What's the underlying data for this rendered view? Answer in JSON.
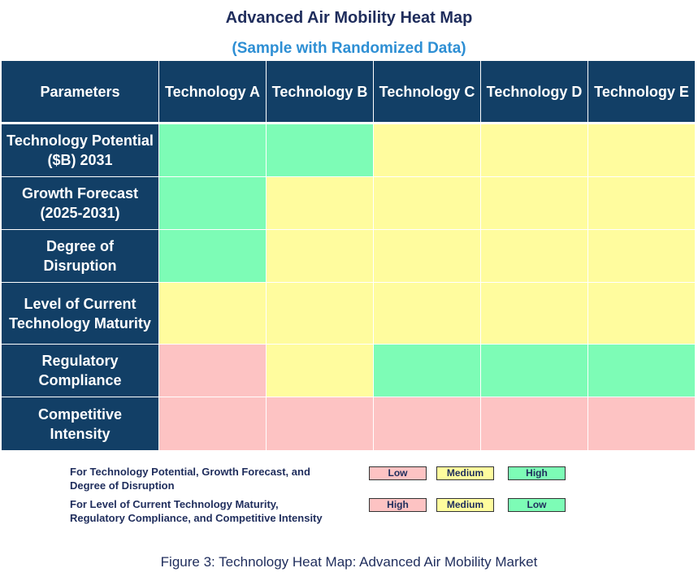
{
  "title": "Advanced Air Mobility Heat Map",
  "subtitle": "(Sample with Randomized Data)",
  "colors": {
    "header_bg": "#123f66",
    "high": "#7dfcb6",
    "medium": "#fffc9e",
    "low": "#fdc3c3"
  },
  "chart_data": {
    "type": "heatmap",
    "corner_label": "Parameters",
    "columns": [
      "Technology A",
      "Technology B",
      "Technology C",
      "Technology D",
      "Technology E"
    ],
    "rows": [
      {
        "label": "Technology Potential ($B) 2031",
        "lines": [
          "Technology Potential",
          "($B) 2031"
        ],
        "values": [
          "high",
          "high",
          "medium",
          "medium",
          "medium"
        ]
      },
      {
        "label": "Growth Forecast (2025-2031)",
        "lines": [
          "Growth Forecast",
          "(2025-2031)"
        ],
        "values": [
          "high",
          "medium",
          "medium",
          "medium",
          "medium"
        ]
      },
      {
        "label": "Degree of Disruption",
        "lines": [
          "Degree of",
          "Disruption"
        ],
        "values": [
          "high",
          "medium",
          "medium",
          "medium",
          "medium"
        ]
      },
      {
        "label": "Level of Current Technology Maturity",
        "lines": [
          "Level of Current",
          "Technology Maturity"
        ],
        "values": [
          "medium",
          "medium",
          "medium",
          "medium",
          "medium"
        ]
      },
      {
        "label": "Regulatory Compliance",
        "lines": [
          "Regulatory",
          "Compliance"
        ],
        "values": [
          "low",
          "medium",
          "high",
          "high",
          "high"
        ]
      },
      {
        "label": "Competitive Intensity",
        "lines": [
          "Competitive",
          "Intensity"
        ],
        "values": [
          "low",
          "low",
          "low",
          "low",
          "low"
        ]
      }
    ]
  },
  "legend": [
    {
      "text_lines": [
        "For Technology Potential, Growth Forecast, and",
        "Degree of Disruption"
      ],
      "swatches": [
        {
          "label": "Low",
          "color": "low"
        },
        {
          "label": "Medium",
          "color": "medium"
        },
        {
          "label": "High",
          "color": "high"
        }
      ]
    },
    {
      "text_lines": [
        "For Level of Current Technology Maturity,",
        "Regulatory Compliance, and Competitive Intensity"
      ],
      "swatches": [
        {
          "label": "High",
          "color": "low"
        },
        {
          "label": "Medium",
          "color": "medium"
        },
        {
          "label": "Low",
          "color": "high"
        }
      ]
    }
  ],
  "caption": "Figure 3: Technology Heat Map: Advanced Air Mobility Market"
}
